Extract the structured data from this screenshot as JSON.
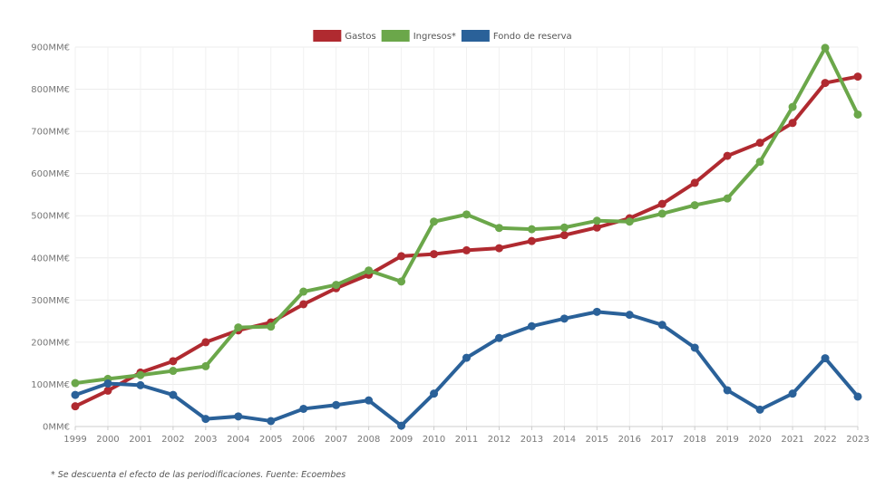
{
  "chart_data": {
    "type": "line",
    "x": [
      "1999",
      "2000",
      "2001",
      "2002",
      "2003",
      "2004",
      "2005",
      "2006",
      "2007",
      "2008",
      "2009",
      "2010",
      "2011",
      "2012",
      "2013",
      "2014",
      "2015",
      "2016",
      "2017",
      "2018",
      "2019",
      "2020",
      "2021",
      "2022",
      "2023"
    ],
    "y_ticks": [
      "0MM€",
      "100MM€",
      "200MM€",
      "300MM€",
      "400MM€",
      "500MM€",
      "600MM€",
      "700MM€",
      "800MM€",
      "900MM€"
    ],
    "ylim": [
      0,
      900
    ],
    "grid": true,
    "legend_position": "top-center",
    "series": [
      {
        "name": "Gastos",
        "color": "#B02A30",
        "values": [
          48,
          85,
          128,
          155,
          200,
          228,
          247,
          290,
          328,
          360,
          404,
          409,
          418,
          423,
          440,
          454,
          472,
          494,
          528,
          578,
          642,
          673,
          720,
          815,
          830
        ]
      },
      {
        "name": "Ingresos*",
        "color": "#6BA74A",
        "values": [
          103,
          113,
          122,
          132,
          143,
          235,
          237,
          320,
          336,
          370,
          344,
          486,
          503,
          471,
          468,
          472,
          488,
          486,
          505,
          525,
          541,
          628,
          758,
          898,
          740
        ]
      },
      {
        "name": "Fondo de reserva",
        "color": "#2A6199",
        "values": [
          75,
          102,
          98,
          75,
          18,
          24,
          13,
          42,
          51,
          62,
          2,
          78,
          163,
          210,
          238,
          256,
          272,
          265,
          241,
          187,
          86,
          40,
          78,
          162,
          71
        ]
      }
    ]
  },
  "footnote": "* Se descuenta el efecto de las periodificaciones. Fuente: Ecoembes"
}
